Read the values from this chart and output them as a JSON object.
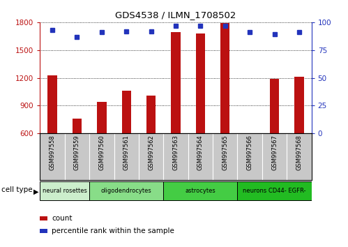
{
  "title": "GDS4538 / ILMN_1708502",
  "samples": [
    "GSM997558",
    "GSM997559",
    "GSM997560",
    "GSM997561",
    "GSM997562",
    "GSM997563",
    "GSM997564",
    "GSM997565",
    "GSM997566",
    "GSM997567",
    "GSM997568"
  ],
  "counts": [
    1230,
    760,
    940,
    1060,
    1010,
    1690,
    1680,
    1790,
    600,
    1190,
    1210
  ],
  "percentiles": [
    93,
    87,
    91,
    92,
    92,
    97,
    97,
    97,
    91,
    89,
    91
  ],
  "ylim_left": [
    600,
    1800
  ],
  "ylim_right": [
    0,
    100
  ],
  "yticks_left": [
    600,
    900,
    1200,
    1500,
    1800
  ],
  "yticks_right": [
    0,
    25,
    50,
    75,
    100
  ],
  "bar_color": "#BB1111",
  "marker_color": "#2233BB",
  "cell_type_groups": [
    {
      "label": "neural rosettes",
      "span": [
        0,
        1
      ],
      "color": "#CCEECC"
    },
    {
      "label": "oligodendrocytes",
      "span": [
        2,
        4
      ],
      "color": "#88DD88"
    },
    {
      "label": "astrocytes",
      "span": [
        5,
        7
      ],
      "color": "#44CC44"
    },
    {
      "label": "neurons CD44- EGFR-",
      "span": [
        8,
        10
      ],
      "color": "#22BB22"
    }
  ],
  "legend_count_label": "count",
  "legend_pct_label": "percentile rank within the sample",
  "cell_type_label": "cell type",
  "xtick_bg_color": "#C8C8C8",
  "background_color": "#FFFFFF"
}
